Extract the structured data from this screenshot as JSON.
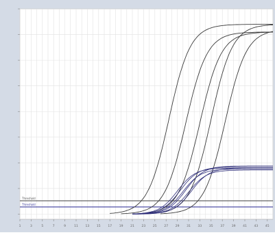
{
  "chart_data": {
    "type": "line",
    "title": "",
    "xlabel": "",
    "ylabel": "",
    "xlim": [
      1,
      46
    ],
    "ylim": [
      -0.1,
      4.0
    ],
    "x_ticks": [
      1,
      3,
      5,
      7,
      9,
      11,
      13,
      15,
      17,
      19,
      21,
      23,
      25,
      27,
      29,
      31,
      33,
      35,
      37,
      39,
      41,
      43,
      45
    ],
    "x_tick_labels": [
      "1",
      "3",
      "5",
      "7",
      "9",
      "11",
      "13",
      "15",
      "17",
      "19",
      "21",
      "23",
      "25",
      "27",
      "29",
      "31",
      "33",
      "35",
      "37",
      "39",
      "41",
      "43",
      "45"
    ],
    "grid": true,
    "thresholds": [
      {
        "label": "Threshold",
        "value": 0.26,
        "color": "#555555"
      },
      {
        "label": "Threshold",
        "value": 0.14,
        "color": "#3c3c9c"
      }
    ],
    "series": [
      {
        "group": "high",
        "plateau": 3.7,
        "midpoint": 27.5,
        "slope": 1.9,
        "start": 17,
        "color": "#3a3a3a"
      },
      {
        "group": "high",
        "plateau": 3.55,
        "midpoint": 30.5,
        "slope": 1.9,
        "start": 19,
        "color": "#3a3a3a"
      },
      {
        "group": "high",
        "plateau": 3.55,
        "midpoint": 33.0,
        "slope": 1.9,
        "start": 22,
        "color": "#3a3a3a"
      },
      {
        "group": "high",
        "plateau": 3.7,
        "midpoint": 35.0,
        "slope": 1.9,
        "start": 24,
        "color": "#3a3a3a"
      },
      {
        "group": "high",
        "plateau": 3.6,
        "midpoint": 37.5,
        "slope": 1.9,
        "start": 26,
        "color": "#3a3a3a"
      },
      {
        "group": "low",
        "plateau": 0.9,
        "midpoint": 29.0,
        "slope": 1.6,
        "start": 21,
        "color": "#2e2e7a"
      },
      {
        "group": "low",
        "plateau": 0.92,
        "midpoint": 29.5,
        "slope": 1.6,
        "start": 21,
        "color": "#2e2e7a"
      },
      {
        "group": "low",
        "plateau": 0.88,
        "midpoint": 30.0,
        "slope": 1.6,
        "start": 21,
        "color": "#2e2e7a"
      },
      {
        "group": "low",
        "plateau": 0.94,
        "midpoint": 30.5,
        "slope": 1.6,
        "start": 21,
        "color": "#2e2e7a"
      },
      {
        "group": "low",
        "plateau": 0.86,
        "midpoint": 31.0,
        "slope": 1.6,
        "start": 21,
        "color": "#2e2e7a"
      },
      {
        "group": "low",
        "plateau": 0.9,
        "midpoint": 31.5,
        "slope": 1.6,
        "start": 21,
        "color": "#2e2e7a"
      }
    ]
  }
}
